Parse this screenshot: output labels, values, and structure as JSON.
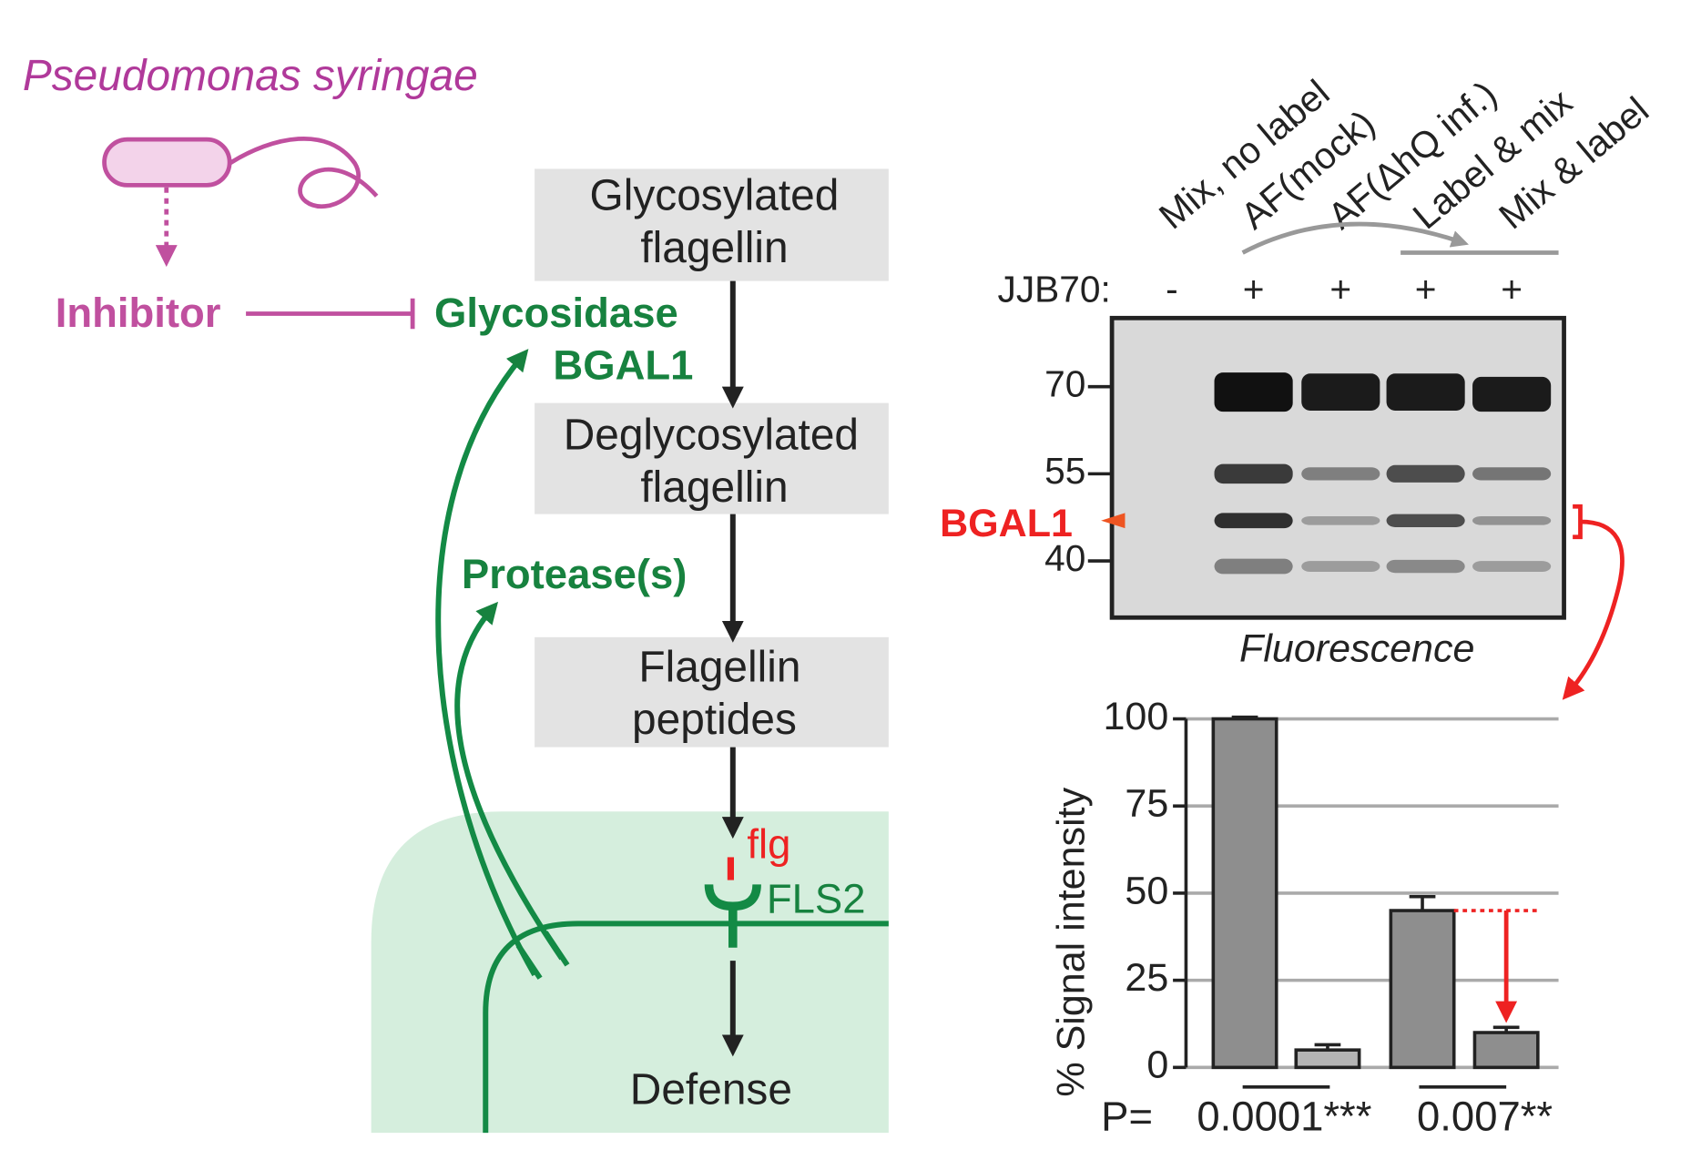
{
  "diagram": {
    "organism": "Pseudomonas syringae",
    "inhibitor": "Inhibitor",
    "enzyme": [
      "Glycosidase",
      "BGAL1"
    ],
    "protease": "Protease(s)",
    "boxes": [
      {
        "lines": [
          "Glycosylated",
          "flagellin"
        ]
      },
      {
        "lines": [
          "Deglycosylated",
          "flagellin"
        ]
      },
      {
        "lines": [
          "Flagellin",
          "peptides"
        ]
      }
    ],
    "ligand": "flg",
    "receptor": "FLS2",
    "outcome": "Defense"
  },
  "gel": {
    "lanes": [
      "Mix, no label",
      "AF(mock)",
      "AF(ΔhQ inf.)",
      "Label & mix",
      "Mix & label"
    ],
    "probe": "JJB70:",
    "signs": [
      "-",
      "+",
      "+",
      "+",
      "+"
    ],
    "markers": [
      "70",
      "55",
      "40"
    ],
    "band_label": "BGAL1",
    "caption": "Fluorescence"
  },
  "chart_data": {
    "type": "bar",
    "categories": [
      null,
      null,
      null,
      null
    ],
    "series": [
      {
        "values": [
          100,
          5,
          45,
          10
        ],
        "errors": [
          0.5,
          1.5,
          4,
          1.5
        ],
        "colors": [
          "#8e8e8e",
          "#b4b4b4",
          "#8e8e8e",
          "#8e8e8e"
        ]
      }
    ],
    "ylabel": "% Signal intensity",
    "ylim": [
      0,
      100
    ],
    "yticks": [
      0,
      25,
      50,
      75,
      100
    ],
    "grid": true,
    "annotations": [
      "P=",
      "0.0001***",
      "0.007**"
    ]
  }
}
